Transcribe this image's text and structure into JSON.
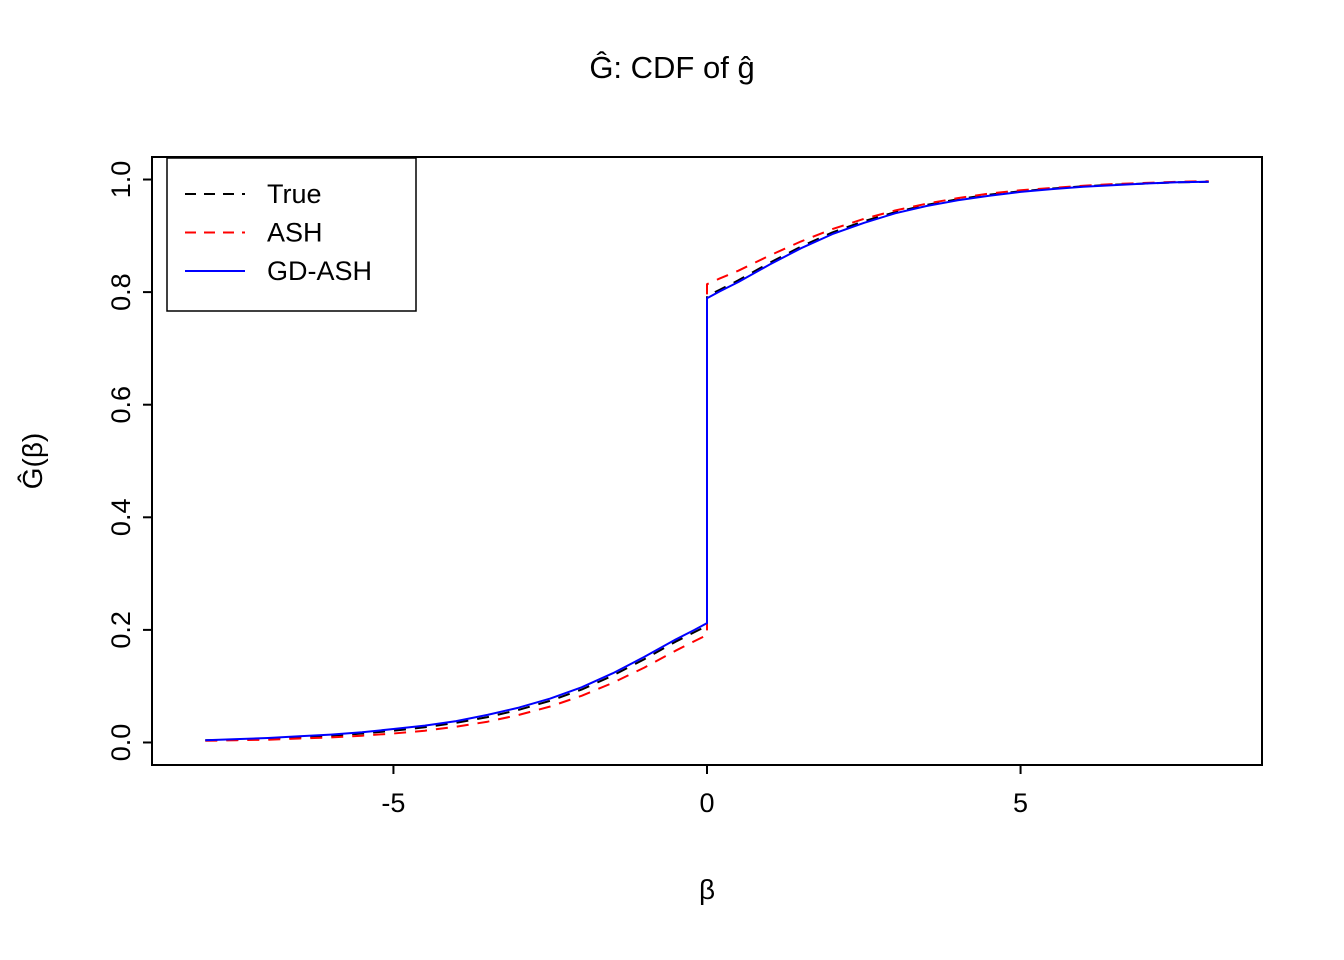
{
  "figure": {
    "background": "#FFFFFF",
    "axis_color": "#000000"
  },
  "chart_data": {
    "type": "line",
    "title": "Ĝ: CDF of ĝ",
    "xlabel": "β",
    "ylabel": "Ĝ(β)",
    "xlim": [
      -8.85,
      8.85
    ],
    "ylim": [
      -0.04,
      1.04
    ],
    "x_ticks": [
      -5,
      0,
      5
    ],
    "x_tick_labels": [
      "-5",
      "0",
      "5"
    ],
    "y_ticks": [
      0,
      0.2,
      0.4,
      0.6,
      0.8,
      1
    ],
    "y_tick_labels": [
      "0.0",
      "0.2",
      "0.4",
      "0.6",
      "0.8",
      "1.0"
    ],
    "grid": false,
    "legend": {
      "position": "top-left",
      "entries": [
        {
          "label": "True",
          "color": "#000000",
          "dash": "dashed"
        },
        {
          "label": "ASH",
          "color": "#FF0000",
          "dash": "dashed"
        },
        {
          "label": "GD-ASH",
          "color": "#0000FF",
          "dash": "solid"
        }
      ]
    },
    "series": [
      {
        "name": "True",
        "color": "#000000",
        "dash": "dashed",
        "points": [
          [
            -8,
            0.004
          ],
          [
            -7.5,
            0.005
          ],
          [
            -7,
            0.007
          ],
          [
            -6.5,
            0.009
          ],
          [
            -6,
            0.012
          ],
          [
            -5.5,
            0.016
          ],
          [
            -5,
            0.021
          ],
          [
            -4.5,
            0.027
          ],
          [
            -4,
            0.035
          ],
          [
            -3.5,
            0.045
          ],
          [
            -3,
            0.058
          ],
          [
            -2.5,
            0.074
          ],
          [
            -2,
            0.094
          ],
          [
            -1.5,
            0.119
          ],
          [
            -1,
            0.148
          ],
          [
            -0.5,
            0.179
          ],
          [
            -0.2,
            0.196
          ],
          [
            0,
            0.207
          ],
          [
            0,
            0.793
          ],
          [
            0.2,
            0.804
          ],
          [
            0.5,
            0.821
          ],
          [
            1,
            0.852
          ],
          [
            1.5,
            0.881
          ],
          [
            2,
            0.906
          ],
          [
            2.5,
            0.926
          ],
          [
            3,
            0.942
          ],
          [
            3.5,
            0.955
          ],
          [
            4,
            0.965
          ],
          [
            4.5,
            0.973
          ],
          [
            5,
            0.979
          ],
          [
            5.5,
            0.984
          ],
          [
            6,
            0.988
          ],
          [
            6.5,
            0.991
          ],
          [
            7,
            0.993
          ],
          [
            7.5,
            0.995
          ],
          [
            8,
            0.996
          ]
        ]
      },
      {
        "name": "ASH",
        "color": "#FF0000",
        "dash": "dashed",
        "points": [
          [
            -8,
            0.003
          ],
          [
            -7.5,
            0.004
          ],
          [
            -7,
            0.005
          ],
          [
            -6.5,
            0.007
          ],
          [
            -6,
            0.009
          ],
          [
            -5.5,
            0.012
          ],
          [
            -5,
            0.016
          ],
          [
            -4.5,
            0.021
          ],
          [
            -4,
            0.028
          ],
          [
            -3.5,
            0.037
          ],
          [
            -3,
            0.049
          ],
          [
            -2.5,
            0.064
          ],
          [
            -2,
            0.083
          ],
          [
            -1.5,
            0.106
          ],
          [
            -1,
            0.133
          ],
          [
            -0.5,
            0.163
          ],
          [
            -0.2,
            0.18
          ],
          [
            0,
            0.191
          ],
          [
            0,
            0.814
          ],
          [
            0.2,
            0.824
          ],
          [
            0.5,
            0.838
          ],
          [
            1,
            0.865
          ],
          [
            1.5,
            0.89
          ],
          [
            2,
            0.912
          ],
          [
            2.5,
            0.93
          ],
          [
            3,
            0.945
          ],
          [
            3.5,
            0.957
          ],
          [
            4,
            0.967
          ],
          [
            4.5,
            0.975
          ],
          [
            5,
            0.981
          ],
          [
            5.5,
            0.985
          ],
          [
            6,
            0.989
          ],
          [
            6.5,
            0.992
          ],
          [
            7,
            0.994
          ],
          [
            7.5,
            0.996
          ],
          [
            8,
            0.997
          ]
        ]
      },
      {
        "name": "GD-ASH",
        "color": "#0000FF",
        "dash": "solid",
        "points": [
          [
            -8,
            0.004
          ],
          [
            -7.5,
            0.006
          ],
          [
            -7,
            0.008
          ],
          [
            -6.5,
            0.011
          ],
          [
            -6,
            0.014
          ],
          [
            -5.5,
            0.018
          ],
          [
            -5,
            0.024
          ],
          [
            -4.5,
            0.03
          ],
          [
            -4,
            0.038
          ],
          [
            -3.5,
            0.049
          ],
          [
            -3,
            0.062
          ],
          [
            -2.5,
            0.078
          ],
          [
            -2,
            0.098
          ],
          [
            -1.5,
            0.123
          ],
          [
            -1,
            0.152
          ],
          [
            -0.5,
            0.183
          ],
          [
            -0.2,
            0.2
          ],
          [
            0,
            0.212
          ],
          [
            0,
            0.789
          ],
          [
            0.2,
            0.801
          ],
          [
            0.5,
            0.818
          ],
          [
            1,
            0.849
          ],
          [
            1.5,
            0.878
          ],
          [
            2,
            0.903
          ],
          [
            2.5,
            0.923
          ],
          [
            3,
            0.94
          ],
          [
            3.5,
            0.953
          ],
          [
            4,
            0.963
          ],
          [
            4.5,
            0.971
          ],
          [
            5,
            0.978
          ],
          [
            5.5,
            0.983
          ],
          [
            6,
            0.987
          ],
          [
            6.5,
            0.99
          ],
          [
            7,
            0.993
          ],
          [
            7.5,
            0.995
          ],
          [
            8,
            0.996
          ]
        ]
      }
    ]
  }
}
